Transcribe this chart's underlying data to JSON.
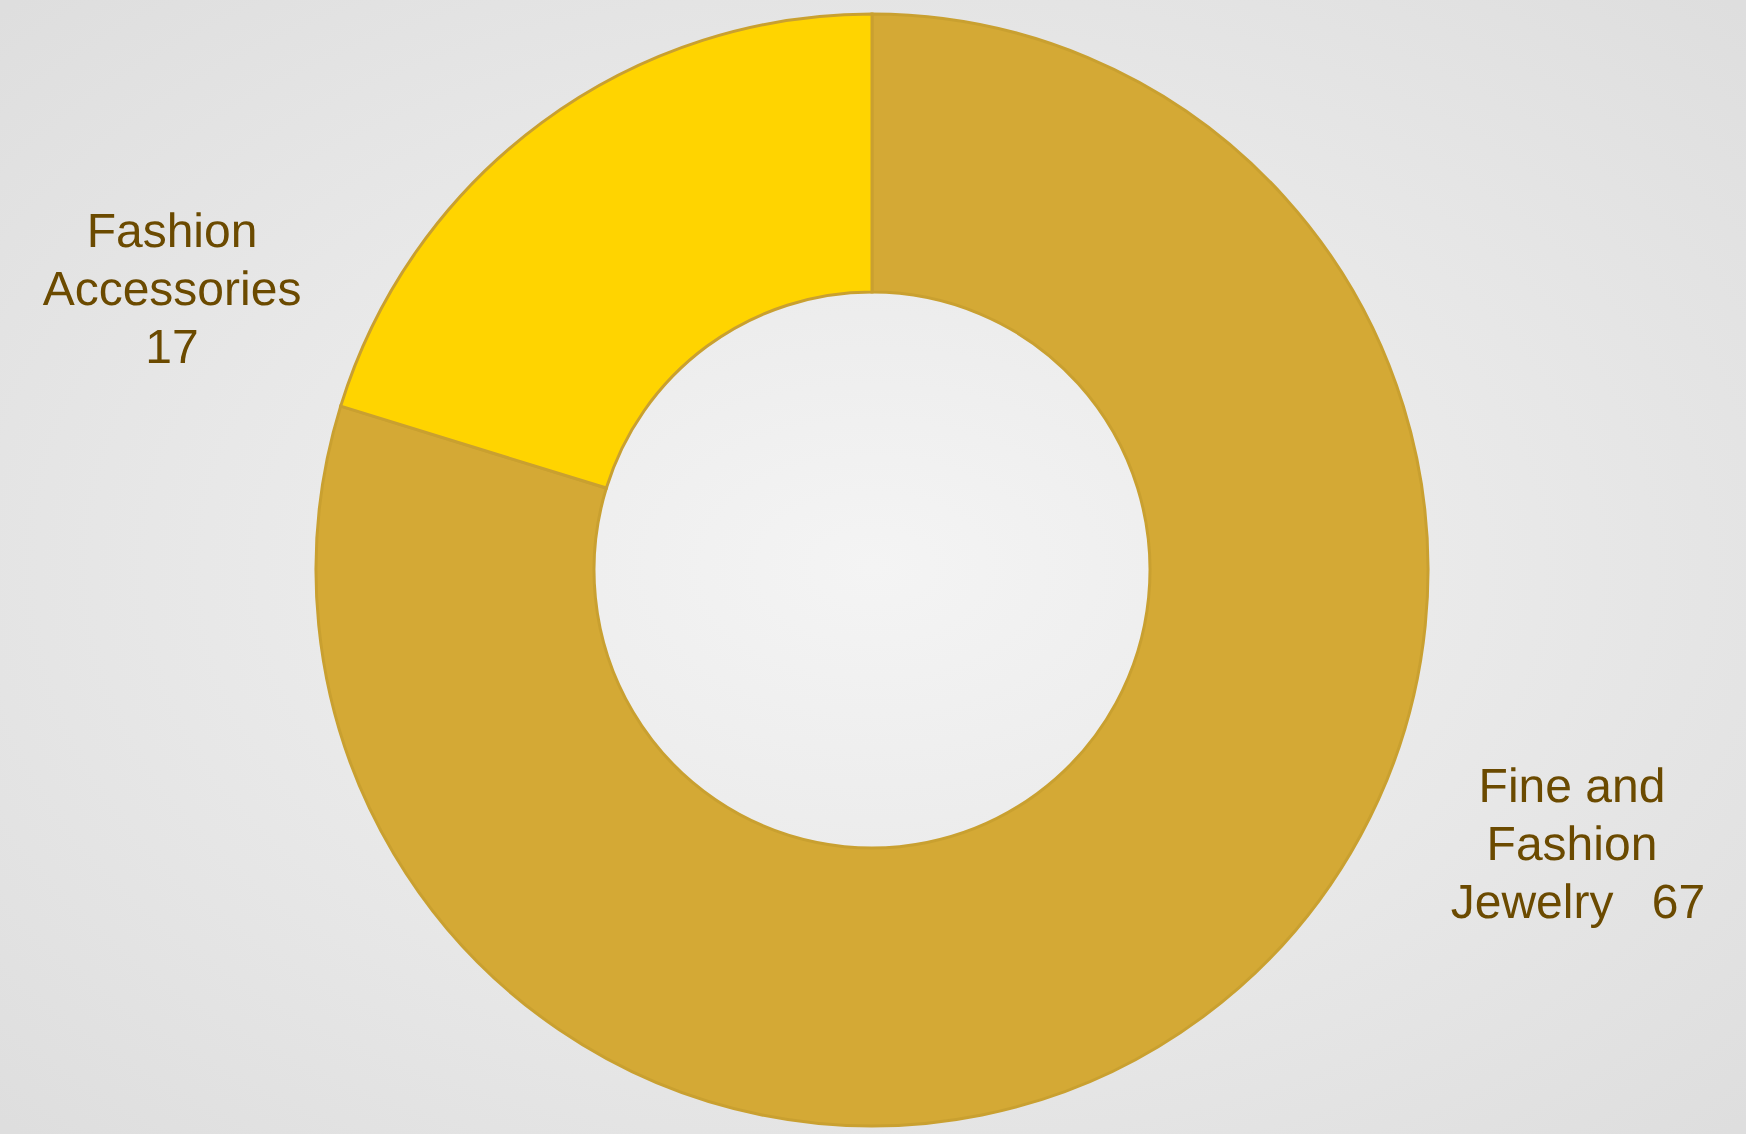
{
  "chart_data": {
    "type": "donut",
    "categories": [
      "Fine and Fashion Jewelry",
      "Fashion Accessories"
    ],
    "values": [
      67,
      17
    ],
    "colors": [
      "#d4a935",
      "#ffd400"
    ],
    "data_labels": true
  }
}
